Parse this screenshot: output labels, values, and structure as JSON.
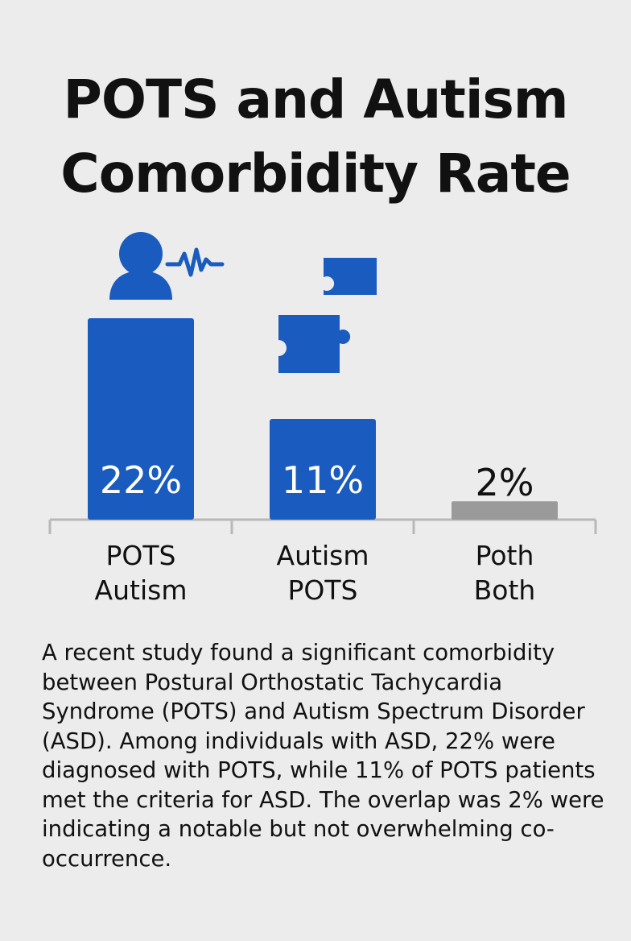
{
  "title": {
    "line1": "POTS and Autism",
    "line2": "Comorbidity Rate"
  },
  "chart_data": {
    "type": "bar",
    "categories": [
      [
        "POTS",
        "Autism"
      ],
      [
        "Autism",
        "POTS"
      ],
      [
        "Poth",
        "Both"
      ]
    ],
    "values": [
      22,
      11,
      2
    ],
    "value_labels": [
      "22%",
      "11%",
      "2%"
    ],
    "title": "POTS and Autism Comorbidity Rate",
    "xlabel": "",
    "ylabel": "",
    "ylim": [
      0,
      22
    ],
    "grid": false,
    "legend": "none"
  },
  "colors": {
    "bar": "#1a5bbf",
    "minor_bar": "#9a9a9a",
    "axis": "#b8b8b8",
    "background": "#ececec",
    "label_on_bar": "#ffffff",
    "label_off_bar": "#111111"
  },
  "icons": [
    "person-heartbeat-icon",
    "puzzle-pieces-icon"
  ],
  "description": "A recent study found a significant comorbidity between Postural Orthostatic Tachycardia Syndrome (POTS) and Autism Spectrum Disorder (ASD). Among individuals with ASD, 22% were diagnosed with POTS, while 11% of POTS patients met the criteria for ASD. The overlap was 2% were indicating a notable but not overwhelming co-occurrence."
}
